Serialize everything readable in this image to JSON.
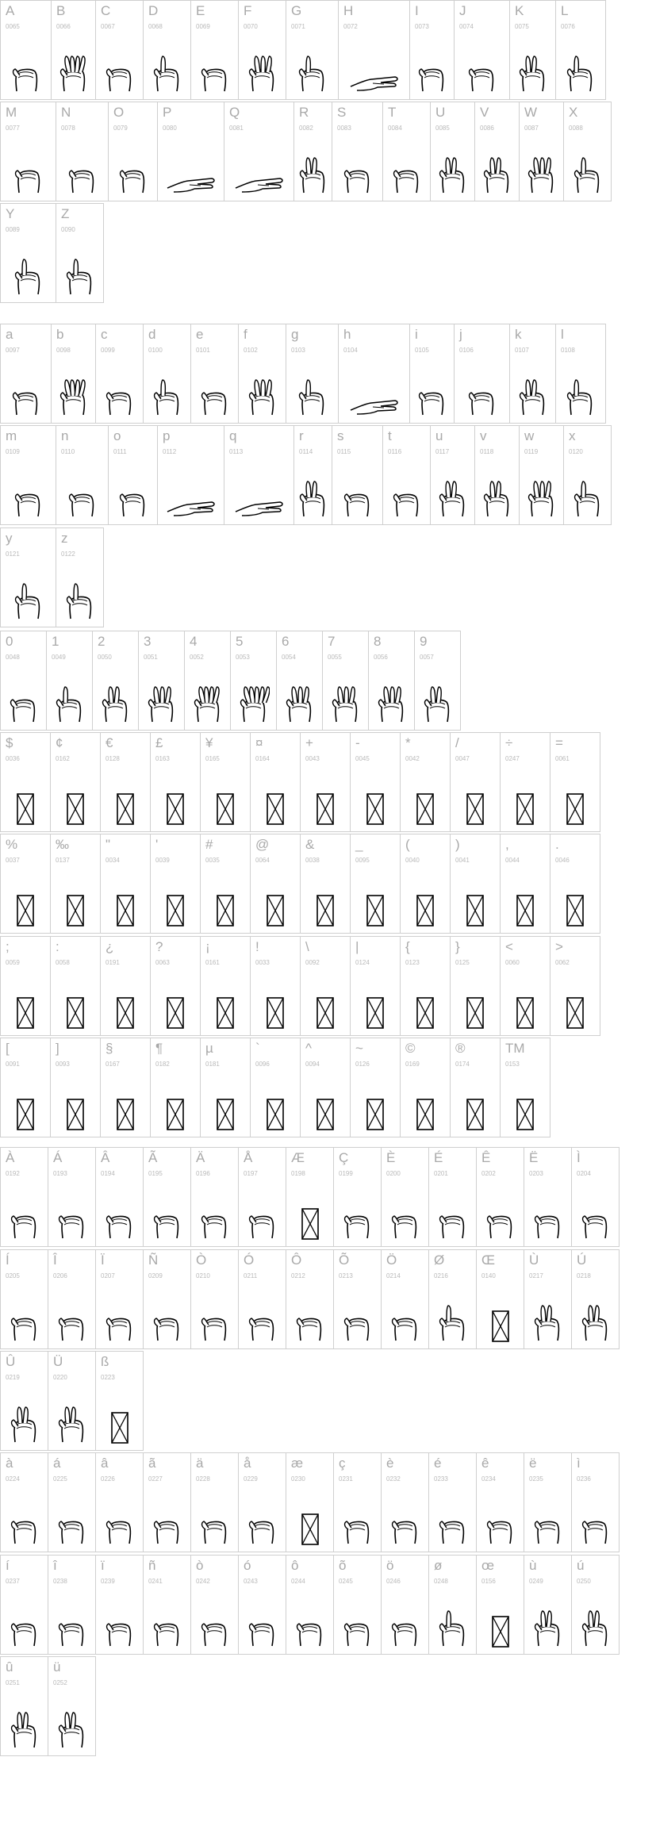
{
  "sections": [
    {
      "cells": [
        {
          "char": "A",
          "code": "0065"
        },
        {
          "char": "B",
          "code": "0066"
        },
        {
          "char": "C",
          "code": "0067"
        },
        {
          "char": "D",
          "code": "0068"
        },
        {
          "char": "E",
          "code": "0069"
        },
        {
          "char": "F",
          "code": "0070"
        },
        {
          "char": "G",
          "code": "0071"
        },
        {
          "char": "H",
          "code": "0072"
        },
        {
          "char": "I",
          "code": "0073"
        },
        {
          "char": "J",
          "code": "0074"
        },
        {
          "char": "K",
          "code": "0075"
        },
        {
          "char": "L",
          "code": "0076"
        },
        {
          "char": "M",
          "code": "0077"
        },
        {
          "char": "N",
          "code": "0078"
        },
        {
          "char": "O",
          "code": "0079"
        },
        {
          "char": "P",
          "code": "0080"
        },
        {
          "char": "Q",
          "code": "0081"
        },
        {
          "char": "R",
          "code": "0082"
        },
        {
          "char": "S",
          "code": "0083"
        },
        {
          "char": "T",
          "code": "0084"
        },
        {
          "char": "U",
          "code": "0085"
        },
        {
          "char": "V",
          "code": "0086"
        },
        {
          "char": "W",
          "code": "0087"
        },
        {
          "char": "X",
          "code": "0088"
        },
        {
          "char": "Y",
          "code": "0089"
        },
        {
          "char": "Z",
          "code": "0090"
        }
      ]
    },
    {
      "cells": [
        {
          "char": "a",
          "code": "0097"
        },
        {
          "char": "b",
          "code": "0098"
        },
        {
          "char": "c",
          "code": "0099"
        },
        {
          "char": "d",
          "code": "0100"
        },
        {
          "char": "e",
          "code": "0101"
        },
        {
          "char": "f",
          "code": "0102"
        },
        {
          "char": "g",
          "code": "0103"
        },
        {
          "char": "h",
          "code": "0104"
        },
        {
          "char": "i",
          "code": "0105"
        },
        {
          "char": "j",
          "code": "0106"
        },
        {
          "char": "k",
          "code": "0107"
        },
        {
          "char": "l",
          "code": "0108"
        },
        {
          "char": "m",
          "code": "0109"
        },
        {
          "char": "n",
          "code": "0110"
        },
        {
          "char": "o",
          "code": "0111"
        },
        {
          "char": "p",
          "code": "0112"
        },
        {
          "char": "q",
          "code": "0113"
        },
        {
          "char": "r",
          "code": "0114"
        },
        {
          "char": "s",
          "code": "0115"
        },
        {
          "char": "t",
          "code": "0116"
        },
        {
          "char": "u",
          "code": "0117"
        },
        {
          "char": "v",
          "code": "0118"
        },
        {
          "char": "w",
          "code": "0119"
        },
        {
          "char": "x",
          "code": "0120"
        },
        {
          "char": "y",
          "code": "0121"
        },
        {
          "char": "z",
          "code": "0122"
        }
      ]
    },
    {
      "cells": [
        {
          "char": "0",
          "code": "0048"
        },
        {
          "char": "1",
          "code": "0049"
        },
        {
          "char": "2",
          "code": "0050"
        },
        {
          "char": "3",
          "code": "0051"
        },
        {
          "char": "4",
          "code": "0052"
        },
        {
          "char": "5",
          "code": "0053"
        },
        {
          "char": "6",
          "code": "0054"
        },
        {
          "char": "7",
          "code": "0055"
        },
        {
          "char": "8",
          "code": "0056"
        },
        {
          "char": "9",
          "code": "0057"
        }
      ]
    },
    {
      "cells": [
        {
          "char": "$",
          "code": "0036"
        },
        {
          "char": "¢",
          "code": "0162"
        },
        {
          "char": "€",
          "code": "0128"
        },
        {
          "char": "£",
          "code": "0163"
        },
        {
          "char": "¥",
          "code": "0165"
        },
        {
          "char": "¤",
          "code": "0164"
        },
        {
          "char": "+",
          "code": "0043"
        },
        {
          "char": "-",
          "code": "0045"
        },
        {
          "char": "*",
          "code": "0042"
        },
        {
          "char": "/",
          "code": "0047"
        },
        {
          "char": "÷",
          "code": "0247"
        },
        {
          "char": "=",
          "code": "0061"
        },
        {
          "char": "%",
          "code": "0037"
        },
        {
          "char": "‰",
          "code": "0137"
        },
        {
          "char": "\"",
          "code": "0034"
        },
        {
          "char": "'",
          "code": "0039"
        },
        {
          "char": "#",
          "code": "0035"
        },
        {
          "char": "@",
          "code": "0064"
        },
        {
          "char": "&",
          "code": "0038"
        },
        {
          "char": "_",
          "code": "0095"
        },
        {
          "char": "(",
          "code": "0040"
        },
        {
          "char": ")",
          "code": "0041"
        },
        {
          "char": ",",
          "code": "0044"
        },
        {
          "char": ".",
          "code": "0046"
        },
        {
          "char": ";",
          "code": "0059"
        },
        {
          "char": ":",
          "code": "0058"
        },
        {
          "char": "¿",
          "code": "0191"
        },
        {
          "char": "?",
          "code": "0063"
        },
        {
          "char": "¡",
          "code": "0161"
        },
        {
          "char": "!",
          "code": "0033"
        },
        {
          "char": "\\",
          "code": "0092"
        },
        {
          "char": "|",
          "code": "0124"
        },
        {
          "char": "{",
          "code": "0123"
        },
        {
          "char": "}",
          "code": "0125"
        },
        {
          "char": "<",
          "code": "0060"
        },
        {
          "char": ">",
          "code": "0062"
        },
        {
          "char": "[",
          "code": "0091"
        },
        {
          "char": "]",
          "code": "0093"
        },
        {
          "char": "§",
          "code": "0167"
        },
        {
          "char": "¶",
          "code": "0182"
        },
        {
          "char": "µ",
          "code": "0181"
        },
        {
          "char": "`",
          "code": "0096"
        },
        {
          "char": "^",
          "code": "0094"
        },
        {
          "char": "~",
          "code": "0126"
        },
        {
          "char": "©",
          "code": "0169"
        },
        {
          "char": "®",
          "code": "0174"
        },
        {
          "char": "TM",
          "code": "0153"
        }
      ]
    },
    {
      "cells": [
        {
          "char": "À",
          "code": "0192"
        },
        {
          "char": "Á",
          "code": "0193"
        },
        {
          "char": "Â",
          "code": "0194"
        },
        {
          "char": "Ã",
          "code": "0195"
        },
        {
          "char": "Ä",
          "code": "0196"
        },
        {
          "char": "Å",
          "code": "0197"
        },
        {
          "char": "Æ",
          "code": "0198"
        },
        {
          "char": "Ç",
          "code": "0199"
        },
        {
          "char": "È",
          "code": "0200"
        },
        {
          "char": "É",
          "code": "0201"
        },
        {
          "char": "Ê",
          "code": "0202"
        },
        {
          "char": "Ë",
          "code": "0203"
        },
        {
          "char": "Ì",
          "code": "0204"
        },
        {
          "char": "Í",
          "code": "0205"
        },
        {
          "char": "Î",
          "code": "0206"
        },
        {
          "char": "Ï",
          "code": "0207"
        },
        {
          "char": "Ñ",
          "code": "0209"
        },
        {
          "char": "Ò",
          "code": "0210"
        },
        {
          "char": "Ó",
          "code": "0211"
        },
        {
          "char": "Ô",
          "code": "0212"
        },
        {
          "char": "Õ",
          "code": "0213"
        },
        {
          "char": "Ö",
          "code": "0214"
        },
        {
          "char": "Ø",
          "code": "0216"
        },
        {
          "char": "Œ",
          "code": "0140"
        },
        {
          "char": "Ù",
          "code": "0217"
        },
        {
          "char": "Ú",
          "code": "0218"
        },
        {
          "char": "Û",
          "code": "0219"
        },
        {
          "char": "Ü",
          "code": "0220"
        },
        {
          "char": "ß",
          "code": "0223"
        }
      ]
    },
    {
      "cells": [
        {
          "char": "à",
          "code": "0224"
        },
        {
          "char": "á",
          "code": "0225"
        },
        {
          "char": "â",
          "code": "0226"
        },
        {
          "char": "ã",
          "code": "0227"
        },
        {
          "char": "ä",
          "code": "0228"
        },
        {
          "char": "å",
          "code": "0229"
        },
        {
          "char": "æ",
          "code": "0230"
        },
        {
          "char": "ç",
          "code": "0231"
        },
        {
          "char": "è",
          "code": "0232"
        },
        {
          "char": "é",
          "code": "0233"
        },
        {
          "char": "ê",
          "code": "0234"
        },
        {
          "char": "ë",
          "code": "0235"
        },
        {
          "char": "ì",
          "code": "0236"
        },
        {
          "char": "í",
          "code": "0237"
        },
        {
          "char": "î",
          "code": "0238"
        },
        {
          "char": "ï",
          "code": "0239"
        },
        {
          "char": "ñ",
          "code": "0241"
        },
        {
          "char": "ò",
          "code": "0242"
        },
        {
          "char": "ó",
          "code": "0243"
        },
        {
          "char": "ô",
          "code": "0244"
        },
        {
          "char": "õ",
          "code": "0245"
        },
        {
          "char": "ö",
          "code": "0246"
        },
        {
          "char": "ø",
          "code": "0248"
        },
        {
          "char": "œ",
          "code": "0156"
        },
        {
          "char": "ù",
          "code": "0249"
        },
        {
          "char": "ú",
          "code": "0250"
        },
        {
          "char": "û",
          "code": "0251"
        },
        {
          "char": "ü",
          "code": "0252"
        }
      ]
    }
  ]
}
